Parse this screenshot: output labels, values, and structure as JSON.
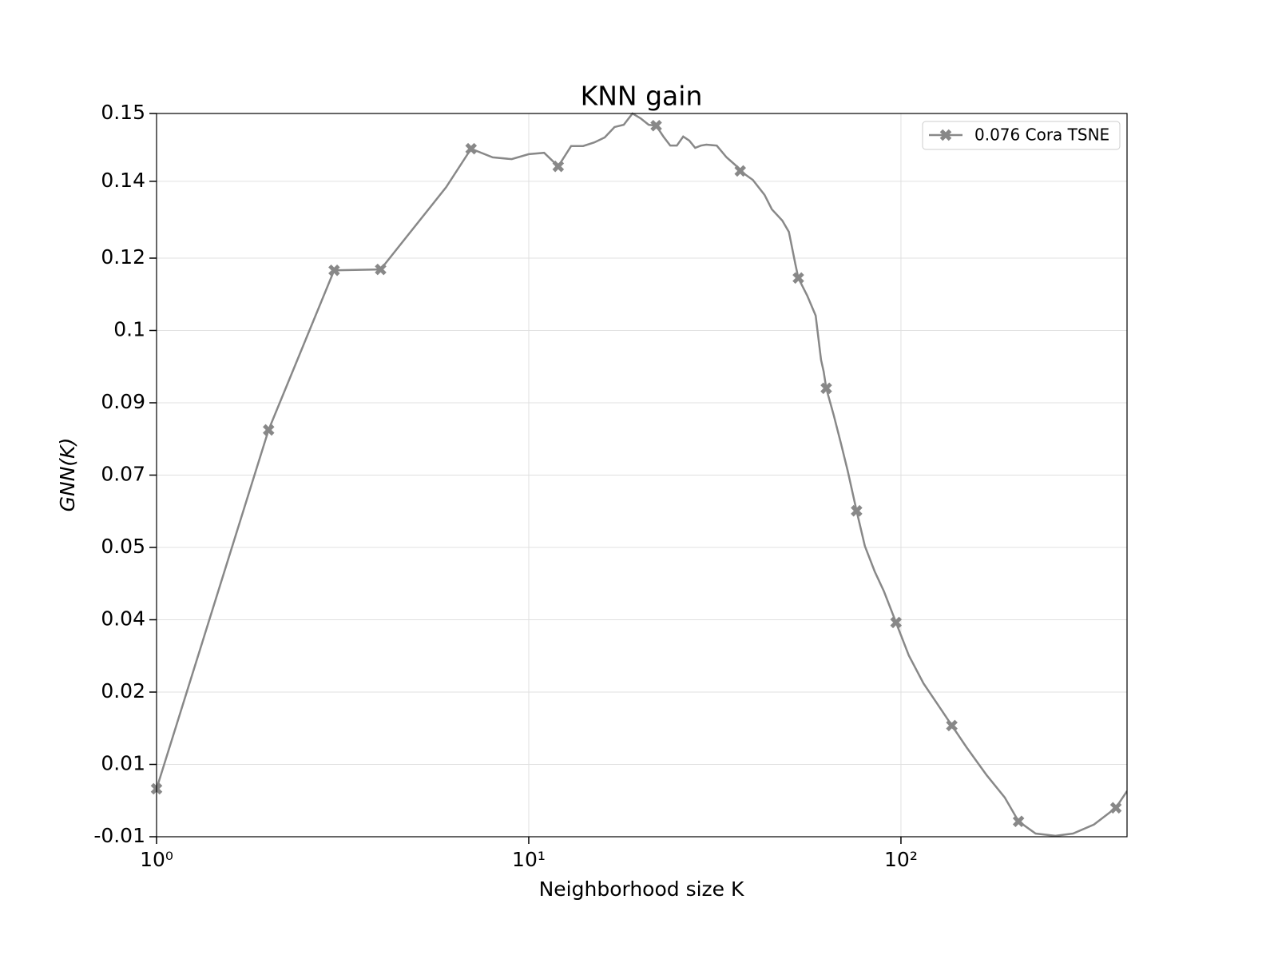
{
  "chart_data": {
    "type": "line",
    "title": "KNN gain",
    "x_label": "Neighborhood size K",
    "y_label": "GNN(K)",
    "x_scale": "log",
    "xlim": [
      1,
      405
    ],
    "xticks": [
      {
        "value": 1,
        "label": "10⁰"
      },
      {
        "value": 10,
        "label": "10¹"
      },
      {
        "value": 100,
        "label": "10²"
      }
    ],
    "ylim": [
      -0.01,
      0.15
    ],
    "yticks": [
      {
        "value": -0.01,
        "label": "-0.01"
      },
      {
        "value": 0.006,
        "label": "0.01"
      },
      {
        "value": 0.022,
        "label": "0.02"
      },
      {
        "value": 0.038,
        "label": "0.04"
      },
      {
        "value": 0.054,
        "label": "0.05"
      },
      0.07,
      {
        "value": 0.086,
        "label": "0.09"
      },
      {
        "value": 0.102,
        "label": "0.1"
      },
      {
        "value": 0.118,
        "label": "0.12"
      },
      {
        "value": 0.135,
        "label": "0.14"
      },
      0.15
    ],
    "grid": true,
    "legend": "upper right",
    "x": [
      1,
      2,
      3,
      4,
      6,
      7,
      8,
      9,
      10,
      11,
      12,
      13,
      14,
      15,
      16,
      17,
      18,
      19,
      20,
      21,
      22,
      23,
      24,
      25,
      26,
      27,
      28,
      29,
      30,
      32,
      34,
      36,
      37,
      40,
      43,
      45,
      48,
      50,
      52,
      53,
      56,
      59,
      61,
      62,
      63,
      66,
      69,
      72,
      76,
      80,
      85,
      90,
      97,
      105,
      115,
      125,
      137,
      150,
      170,
      190,
      207,
      230,
      260,
      290,
      330,
      378,
      405
    ],
    "series": [
      {
        "name": "0.076 Cora TSNE",
        "color": "#888888",
        "values": [
          0.0006,
          0.08,
          0.1153,
          0.1155,
          0.1337,
          0.1422,
          0.1403,
          0.1399,
          0.141,
          0.1413,
          0.1383,
          0.1428,
          0.1428,
          0.1436,
          0.1447,
          0.147,
          0.1475,
          0.15,
          0.1489,
          0.1475,
          0.1473,
          0.1449,
          0.1429,
          0.1429,
          0.1449,
          0.144,
          0.1424,
          0.1429,
          0.1431,
          0.1429,
          0.1403,
          0.1385,
          0.1373,
          0.1353,
          0.132,
          0.1288,
          0.1263,
          0.1238,
          0.1168,
          0.1136,
          0.1097,
          0.1053,
          0.0955,
          0.0929,
          0.0892,
          0.0832,
          0.077,
          0.0708,
          0.0621,
          0.0543,
          0.0487,
          0.0443,
          0.0374,
          0.0301,
          0.0239,
          0.0195,
          0.0146,
          0.0098,
          0.0036,
          -0.0013,
          -0.0066,
          -0.0093,
          -0.0098,
          -0.0093,
          -0.0073,
          -0.0036,
          0.0001
        ],
        "markevery": [
          0,
          1,
          2,
          3,
          5,
          10,
          20,
          32,
          39,
          44,
          48,
          52,
          56,
          60,
          65
        ]
      }
    ]
  }
}
